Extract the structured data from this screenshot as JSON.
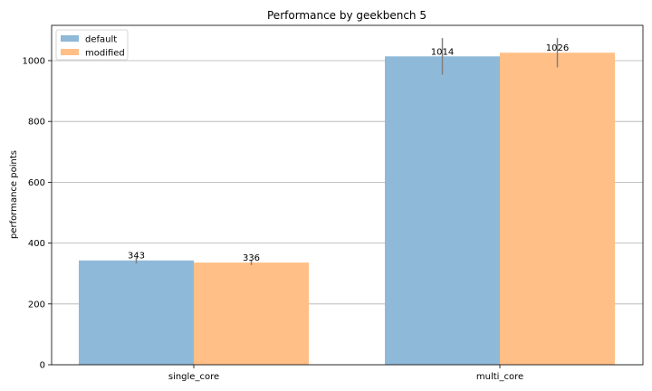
{
  "chart_data": {
    "type": "bar",
    "title": "Performance by geekbench 5",
    "xlabel": "",
    "ylabel": "performance points",
    "categories": [
      "single_core",
      "multi_core"
    ],
    "series": [
      {
        "name": "default",
        "values": [
          343,
          1014
        ],
        "errors": [
          10,
          60
        ],
        "color": "#8fb9d8"
      },
      {
        "name": "modified",
        "values": [
          336,
          1026
        ],
        "errors": [
          8,
          48
        ],
        "color": "#ffbf86"
      }
    ],
    "data_labels": [
      [
        "343",
        "1014"
      ],
      [
        "336",
        "1026"
      ]
    ],
    "y_ticks": [
      0,
      200,
      400,
      600,
      800,
      1000
    ],
    "ylim": [
      0,
      1116
    ],
    "grid": "y",
    "legend_position": "top-left",
    "error_bar_color": "#808080"
  }
}
